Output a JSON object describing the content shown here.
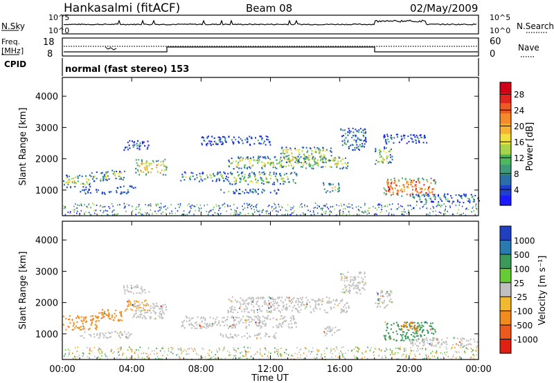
{
  "header": {
    "station": "Hankasalmi (fitACF)",
    "beam": "Beam 08",
    "date": "02/May/2009"
  },
  "top_panels": {
    "nsky_label": "N.Sky",
    "nsearch_label": "N.Search",
    "noise_ticks_left": [
      "10^5",
      "10^0"
    ],
    "noise_ticks_right": [
      "10^5",
      "10^0"
    ],
    "freq_label_1": "Freq.",
    "freq_label_2": "[MHz]",
    "freq_ticks": [
      "18",
      "8"
    ],
    "nave_label": "Nave",
    "nave_ticks": [
      "60",
      "0"
    ],
    "cpid_label": "CPID",
    "cpid_value": "normal (fast stereo) 153"
  },
  "chart_data": [
    {
      "type": "heatmap",
      "title": "",
      "xlabel": "Time UT",
      "ylabel": "Slant Range [km]",
      "x_ticks": [
        "00:00",
        "04:00",
        "08:00",
        "12:00",
        "16:00",
        "20:00",
        "00:00"
      ],
      "xlim_hours": [
        0,
        24
      ],
      "y_ticks": [
        1000,
        2000,
        3000,
        4000
      ],
      "ylim": [
        180,
        4600
      ],
      "colorbar": {
        "label": "Power [dB]",
        "ticks": [
          4,
          8,
          12,
          16,
          20,
          24,
          28
        ],
        "range": [
          0,
          31
        ],
        "colors": [
          "#1a1aff",
          "#1f3fcf",
          "#2a6fa8",
          "#3f9a7a",
          "#4db85c",
          "#a8d44a",
          "#f0e040",
          "#f7b233",
          "#f58a2a",
          "#ee5a22",
          "#e0261c",
          "#d0001a"
        ]
      },
      "echo_regions": [
        {
          "t": [
            0.0,
            1.6
          ],
          "r": [
            1100,
            1500
          ],
          "level": 0.45
        },
        {
          "t": [
            1.6,
            2.6
          ],
          "r": [
            1300,
            1600
          ],
          "level": 0.4
        },
        {
          "t": [
            2.3,
            3.6
          ],
          "r": [
            1350,
            1650
          ],
          "level": 0.45
        },
        {
          "t": [
            1.0,
            2.8
          ],
          "r": [
            880,
            1050
          ],
          "level": 0.3
        },
        {
          "t": [
            3.0,
            4.2
          ],
          "r": [
            900,
            1150
          ],
          "level": 0.3
        },
        {
          "t": [
            4.2,
            6.0
          ],
          "r": [
            1500,
            2000
          ],
          "level": 0.6
        },
        {
          "t": [
            3.5,
            5.0
          ],
          "r": [
            2300,
            2600
          ],
          "level": 0.2
        },
        {
          "t": [
            6.8,
            9.5
          ],
          "r": [
            1300,
            1600
          ],
          "level": 0.35
        },
        {
          "t": [
            9.5,
            13.5
          ],
          "r": [
            1200,
            1600
          ],
          "level": 0.4
        },
        {
          "t": [
            9.0,
            12.5
          ],
          "r": [
            900,
            1050
          ],
          "level": 0.3
        },
        {
          "t": [
            9.5,
            16.5
          ],
          "r": [
            1700,
            2100
          ],
          "level": 0.45
        },
        {
          "t": [
            12.5,
            15.5
          ],
          "r": [
            1900,
            2400
          ],
          "level": 0.45
        },
        {
          "t": [
            15.0,
            16.0
          ],
          "r": [
            950,
            1250
          ],
          "level": 0.5
        },
        {
          "t": [
            16.0,
            17.5
          ],
          "r": [
            2300,
            3000
          ],
          "level": 0.25
        },
        {
          "t": [
            18.0,
            19.0
          ],
          "r": [
            1850,
            2400
          ],
          "level": 0.45
        },
        {
          "t": [
            18.5,
            21.0
          ],
          "r": [
            2500,
            2800
          ],
          "level": 0.2
        },
        {
          "t": [
            18.5,
            21.5
          ],
          "r": [
            800,
            1400
          ],
          "level": 0.75
        },
        {
          "t": [
            20.0,
            24.0
          ],
          "r": [
            620,
            900
          ],
          "level": 0.25
        },
        {
          "t": [
            8.0,
            12.0
          ],
          "r": [
            2450,
            2750
          ],
          "level": 0.2
        }
      ]
    },
    {
      "type": "heatmap",
      "title": "",
      "xlabel": "Time UT",
      "ylabel": "Slant Range [km]",
      "x_ticks": [
        "00:00",
        "04:00",
        "08:00",
        "12:00",
        "16:00",
        "20:00",
        "00:00"
      ],
      "xlim_hours": [
        0,
        24
      ],
      "y_ticks": [
        1000,
        2000,
        3000,
        4000
      ],
      "ylim": [
        180,
        4600
      ],
      "colorbar": {
        "label": "Velocity [m s⁻¹]",
        "ticks": [
          1000,
          500,
          100,
          25,
          -25,
          -100,
          -500,
          -1000
        ],
        "colors": [
          "#2040c0",
          "#2a7ab0",
          "#3a9a5a",
          "#66cc33",
          "#c0c0c0",
          "#f2b830",
          "#f28a1c",
          "#ee5a1a",
          "#e02010"
        ]
      },
      "echo_regions": [
        {
          "t": [
            0.0,
            2.0
          ],
          "r": [
            1150,
            1600
          ],
          "color": "#f28a1c"
        },
        {
          "t": [
            2.0,
            3.5
          ],
          "r": [
            1400,
            1800
          ],
          "color": "#f28a1c"
        },
        {
          "t": [
            3.5,
            5.0
          ],
          "r": [
            1750,
            2100
          ],
          "color": "#f2a030"
        },
        {
          "t": [
            4.0,
            6.0
          ],
          "r": [
            1500,
            2000
          ],
          "color": "#c0c0c0"
        },
        {
          "t": [
            3.5,
            5.0
          ],
          "r": [
            2300,
            2600
          ],
          "color": "#c0c0c0"
        },
        {
          "t": [
            6.8,
            13.5
          ],
          "r": [
            1200,
            1600
          ],
          "color": "#c0c0c0"
        },
        {
          "t": [
            9.0,
            12.5
          ],
          "r": [
            880,
            1050
          ],
          "color": "#c0c0c0"
        },
        {
          "t": [
            9.5,
            16.5
          ],
          "r": [
            1700,
            2200
          ],
          "color": "#c0c0c0"
        },
        {
          "t": [
            15.0,
            16.0
          ],
          "r": [
            950,
            1250
          ],
          "color": "#c0c0c0"
        },
        {
          "t": [
            16.0,
            17.5
          ],
          "r": [
            2300,
            3000
          ],
          "color": "#c0c0c0"
        },
        {
          "t": [
            18.0,
            19.0
          ],
          "r": [
            1850,
            2400
          ],
          "color": "#c0c0c0"
        },
        {
          "t": [
            18.5,
            21.5
          ],
          "r": [
            800,
            1400
          ],
          "color": "#3a9a5a"
        },
        {
          "t": [
            19.5,
            20.5
          ],
          "r": [
            1100,
            1400
          ],
          "color": "#f28a1c"
        },
        {
          "t": [
            20.0,
            24.0
          ],
          "r": [
            620,
            900
          ],
          "color": "#c0c0c0"
        },
        {
          "t": [
            1.0,
            4.0
          ],
          "r": [
            880,
            1100
          ],
          "color": "#c0c0c0"
        }
      ]
    }
  ]
}
